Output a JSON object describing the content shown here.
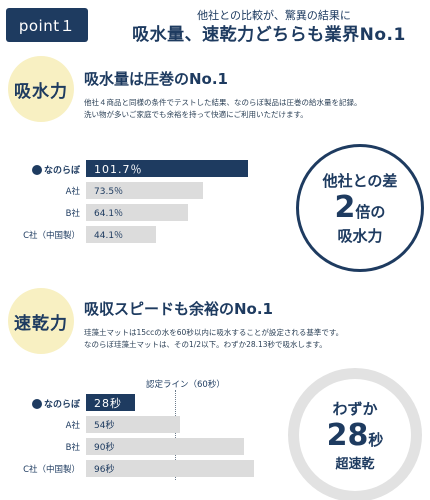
{
  "header": {
    "point_label": "point１",
    "line1": "他社との比較が、驚異の結果に",
    "line2": "吸水量、速乾力どちらも業界No.1"
  },
  "absorb": {
    "badge": "吸水力",
    "title": "吸水量は圧巻のNo.1",
    "desc1": "他社４商品と同様の条件でテストした結果、なのらぼ製品は圧巻の給水量を記録。",
    "desc2": "洗い物が多いご家庭でも余裕を持って快適にご利用いただけます。",
    "rows": [
      {
        "label": "なのらぼ",
        "value": "101.7％",
        "fraction": 1.0
      },
      {
        "label": "A社",
        "value": "73.5％",
        "fraction": 0.72
      },
      {
        "label": "B社",
        "value": "64.1％",
        "fraction": 0.63
      },
      {
        "label": "C社（中国製）",
        "value": "44.1％",
        "fraction": 0.43
      }
    ],
    "circle": {
      "line1": "他社との差",
      "big": "2",
      "unit": "倍の",
      "line3": "吸水力"
    }
  },
  "dry": {
    "badge": "速乾力",
    "title": "吸収スピードも余裕のNo.1",
    "desc1": "珪藻土マットは15ccの水を60秒以内に吸水することが設定される基準です。",
    "desc2": "なのらぼ珪藻土マットは、その1/2以下。わずか28.13秒で吸水します。",
    "standard_label": "認定ライン（60秒）",
    "rows": [
      {
        "label": "なのらぼ",
        "value": "28秒",
        "fraction": 0.29
      },
      {
        "label": "A社",
        "value": "54秒",
        "fraction": 0.56
      },
      {
        "label": "B社",
        "value": "90秒",
        "fraction": 0.94
      },
      {
        "label": "C社（中国製）",
        "value": "96秒",
        "fraction": 1.0
      }
    ],
    "circle": {
      "line1": "わずか",
      "big": "28",
      "unit": "秒",
      "line3": "超速乾"
    }
  },
  "colors": {
    "navy": "#1e3b60",
    "gray_bar": "#dcdcdc",
    "yellow": "#f8f0c2",
    "ring_gray": "#e2e2e2"
  }
}
